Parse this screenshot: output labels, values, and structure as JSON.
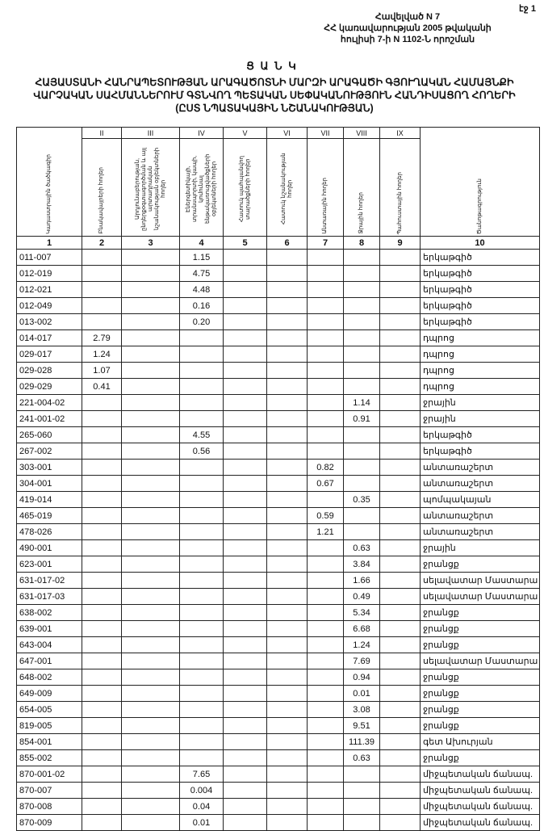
{
  "page_label": "էջ 1",
  "annex": {
    "line1": "Հավելված N 7",
    "line2": "ՀՀ կառավարության 2005 թվականի",
    "line3": "հուլիսի 7-ի N 1102-Ն որոշման"
  },
  "title": "Ց Ա Ն Կ",
  "subtitle": {
    "line1": "ՀԱՅԱՍՏԱՆԻ ՀԱՆՐԱՊԵՏՈՒԹՅԱՆ ԱՐԱԳԱԾՈՏՆԻ ՄԱՐԶԻ ԱՐԱԳԱԾԻ ԳՅՈՒՂԱԿԱՆ ՀԱՄԱՅՆՔԻ",
    "line2": "ՎԱՐՉԱԿԱՆ ՍԱՀՄԱՆՆԵՐՈՒՄ ԳՏՆՎՈՂ ՊԵՏԱԿԱՆ ՍԵՓԱԿԱՆՈՒԹՅՈՒՆ ՀԱՆԴԻՍԱՑՈՂ ՀՈՂԵՐԻ",
    "line3": "(ԸՍՏ ՆՊԱՏԱԿԱՅԻՆ ՆՇԱՆԱԿՈՒԹՅԱՆ)"
  },
  "table": {
    "roman": [
      "",
      "II",
      "III",
      "IV",
      "V",
      "VI",
      "VII",
      "VIII",
      "IX",
      ""
    ],
    "headers": [
      "Կադաստրային ծածկագիր",
      "Բնակավայրերի հողեր",
      "Արդյունաբերության, ընդերքօգտագործման և այլ արտադրական նշանակության օբյեկտների հողեր",
      "Էներգետիկայի, տրանսպորտի, կապի, կոմունալ ենթակառուցվածքների օբյեկտների հողեր",
      "Հատուկ պահպանվող տարածքների հողեր",
      "Հատուկ նշանակության հողեր",
      "Անտառային հողեր",
      "Ջրային հողեր",
      "Պահուստային հողեր",
      "Ծանոթագրություն"
    ],
    "numbers": [
      "1",
      "2",
      "3",
      "4",
      "5",
      "6",
      "7",
      "8",
      "9",
      "10"
    ],
    "rows": [
      {
        "code": "011-007",
        "values": [
          "",
          "",
          "1.15",
          "",
          "",
          "",
          "",
          ""
        ],
        "note": "երկաթգիծ"
      },
      {
        "code": "012-019",
        "values": [
          "",
          "",
          "4.75",
          "",
          "",
          "",
          "",
          ""
        ],
        "note": "երկաթգիծ"
      },
      {
        "code": "012-021",
        "values": [
          "",
          "",
          "4.48",
          "",
          "",
          "",
          "",
          ""
        ],
        "note": "երկաթգիծ"
      },
      {
        "code": "012-049",
        "values": [
          "",
          "",
          "0.16",
          "",
          "",
          "",
          "",
          ""
        ],
        "note": "երկաթգիծ"
      },
      {
        "code": "013-002",
        "values": [
          "",
          "",
          "0.20",
          "",
          "",
          "",
          "",
          ""
        ],
        "note": "երկաթգիծ"
      },
      {
        "code": "014-017",
        "values": [
          "2.79",
          "",
          "",
          "",
          "",
          "",
          "",
          ""
        ],
        "note": "դպրոց"
      },
      {
        "code": "029-017",
        "values": [
          "1.24",
          "",
          "",
          "",
          "",
          "",
          "",
          ""
        ],
        "note": "դպրոց"
      },
      {
        "code": "029-028",
        "values": [
          "1.07",
          "",
          "",
          "",
          "",
          "",
          "",
          ""
        ],
        "note": "դպրոց"
      },
      {
        "code": "029-029",
        "values": [
          "0.41",
          "",
          "",
          "",
          "",
          "",
          "",
          ""
        ],
        "note": "դպրոց"
      },
      {
        "code": "221-004-02",
        "values": [
          "",
          "",
          "",
          "",
          "",
          "",
          "1.14",
          ""
        ],
        "note": "ջրային"
      },
      {
        "code": "241-001-02",
        "values": [
          "",
          "",
          "",
          "",
          "",
          "",
          "0.91",
          ""
        ],
        "note": "ջրային"
      },
      {
        "code": "265-060",
        "values": [
          "",
          "",
          "4.55",
          "",
          "",
          "",
          "",
          ""
        ],
        "note": "երկաթգիծ"
      },
      {
        "code": "267-002",
        "values": [
          "",
          "",
          "0.56",
          "",
          "",
          "",
          "",
          ""
        ],
        "note": "երկաթգիծ"
      },
      {
        "code": "303-001",
        "values": [
          "",
          "",
          "",
          "",
          "",
          "0.82",
          "",
          ""
        ],
        "note": "անտառաշերտ"
      },
      {
        "code": "304-001",
        "values": [
          "",
          "",
          "",
          "",
          "",
          "0.67",
          "",
          ""
        ],
        "note": "անտառաշերտ"
      },
      {
        "code": "419-014",
        "values": [
          "",
          "",
          "",
          "",
          "",
          "",
          "0.35",
          ""
        ],
        "note": "պոմպակայան"
      },
      {
        "code": "465-019",
        "values": [
          "",
          "",
          "",
          "",
          "",
          "0.59",
          "",
          ""
        ],
        "note": "անտառաշերտ"
      },
      {
        "code": "478-026",
        "values": [
          "",
          "",
          "",
          "",
          "",
          "1.21",
          "",
          ""
        ],
        "note": "անտառաշերտ"
      },
      {
        "code": "490-001",
        "values": [
          "",
          "",
          "",
          "",
          "",
          "",
          "0.63",
          ""
        ],
        "note": "ջրային"
      },
      {
        "code": "623-001",
        "values": [
          "",
          "",
          "",
          "",
          "",
          "",
          "3.84",
          ""
        ],
        "note": "ջրանցք"
      },
      {
        "code": "631-017-02",
        "values": [
          "",
          "",
          "",
          "",
          "",
          "",
          "1.66",
          ""
        ],
        "note": "սելավատար Մաստարա"
      },
      {
        "code": "631-017-03",
        "values": [
          "",
          "",
          "",
          "",
          "",
          "",
          "0.49",
          ""
        ],
        "note": "սելավատար Մաստարա"
      },
      {
        "code": "638-002",
        "values": [
          "",
          "",
          "",
          "",
          "",
          "",
          "5.34",
          ""
        ],
        "note": "ջրանցք"
      },
      {
        "code": "639-001",
        "values": [
          "",
          "",
          "",
          "",
          "",
          "",
          "6.68",
          ""
        ],
        "note": "ջրանցք"
      },
      {
        "code": "643-004",
        "values": [
          "",
          "",
          "",
          "",
          "",
          "",
          "1.24",
          ""
        ],
        "note": "ջրանցք"
      },
      {
        "code": "647-001",
        "values": [
          "",
          "",
          "",
          "",
          "",
          "",
          "7.69",
          ""
        ],
        "note": "սելավատար Մաստարա"
      },
      {
        "code": "648-002",
        "values": [
          "",
          "",
          "",
          "",
          "",
          "",
          "0.94",
          ""
        ],
        "note": "ջրանցք"
      },
      {
        "code": "649-009",
        "values": [
          "",
          "",
          "",
          "",
          "",
          "",
          "0.01",
          ""
        ],
        "note": "ջրանցք"
      },
      {
        "code": "654-005",
        "values": [
          "",
          "",
          "",
          "",
          "",
          "",
          "3.08",
          ""
        ],
        "note": "ջրանցք"
      },
      {
        "code": "819-005",
        "values": [
          "",
          "",
          "",
          "",
          "",
          "",
          "9.51",
          ""
        ],
        "note": "ջրանցք"
      },
      {
        "code": "854-001",
        "values": [
          "",
          "",
          "",
          "",
          "",
          "",
          "111.39",
          ""
        ],
        "note": "գետ Ախուրյան"
      },
      {
        "code": "855-002",
        "values": [
          "",
          "",
          "",
          "",
          "",
          "",
          "0.63",
          ""
        ],
        "note": "ջրանցք"
      },
      {
        "code": "870-001-02",
        "values": [
          "",
          "",
          "7.65",
          "",
          "",
          "",
          "",
          ""
        ],
        "note": "միջպետական ճանապ."
      },
      {
        "code": "870-007",
        "values": [
          "",
          "",
          "0.004",
          "",
          "",
          "",
          "",
          ""
        ],
        "note": "միջպետական ճանապ."
      },
      {
        "code": "870-008",
        "values": [
          "",
          "",
          "0.04",
          "",
          "",
          "",
          "",
          ""
        ],
        "note": "միջպետական ճանապ."
      },
      {
        "code": "870-009",
        "values": [
          "",
          "",
          "0.01",
          "",
          "",
          "",
          "",
          ""
        ],
        "note": "միջպետական ճանապ."
      }
    ]
  }
}
